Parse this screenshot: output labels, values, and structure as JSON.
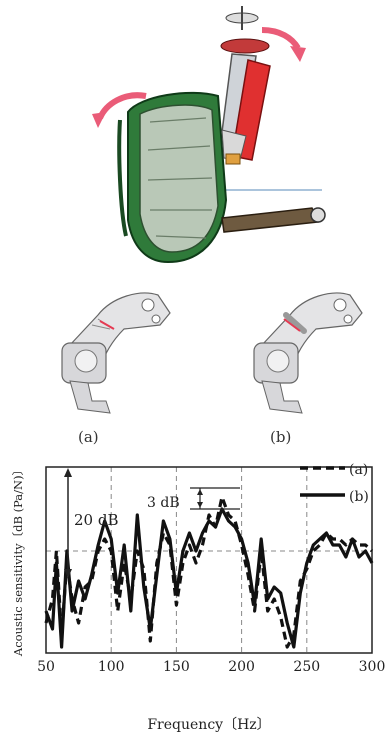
{
  "figure": {
    "panel_labels": {
      "a": "(a)",
      "b": "(b)"
    }
  },
  "chart_data": {
    "type": "line",
    "xlabel": "Frequency〔Hz〕",
    "ylabel": "Acoustic sensitivity〔dB (Pa/N)〕",
    "xlim": [
      50,
      300
    ],
    "x_ticks": [
      "50",
      "100",
      "150",
      "200",
      "250",
      "300"
    ],
    "grid": true,
    "legend_position": "top-right",
    "annotations": {
      "range_20db": "20 dB",
      "delta_3db": "3 dB"
    },
    "series": [
      {
        "name": "(a)",
        "style": "dashed",
        "x": [
          50,
          55,
          58,
          62,
          66,
          70,
          75,
          80,
          85,
          90,
          95,
          100,
          105,
          110,
          115,
          120,
          125,
          130,
          135,
          140,
          145,
          150,
          155,
          160,
          165,
          170,
          175,
          180,
          185,
          190,
          195,
          200,
          205,
          210,
          215,
          220,
          225,
          230,
          235,
          240,
          245,
          250,
          255,
          260,
          265,
          270,
          275,
          280,
          285,
          290,
          295,
          300
        ],
        "y": [
          -16,
          -12,
          -4,
          -18,
          -6,
          -12,
          -16,
          -10,
          -9,
          -4,
          -2,
          -4,
          -14,
          -6,
          -12,
          -4,
          -7,
          -19,
          -6,
          -1,
          -3,
          -13,
          -6,
          -3,
          -6,
          -3,
          2,
          0,
          5,
          2,
          1,
          -3,
          -8,
          -14,
          -4,
          -14,
          -12,
          -15,
          -20,
          -18,
          -9,
          -7,
          -4,
          -3,
          -1,
          -2,
          -2,
          -3,
          -2,
          -3,
          -3,
          -4
        ]
      },
      {
        "name": "(b)",
        "style": "solid",
        "x": [
          50,
          55,
          58,
          62,
          66,
          70,
          75,
          80,
          85,
          90,
          95,
          100,
          105,
          110,
          115,
          120,
          125,
          130,
          135,
          140,
          145,
          150,
          155,
          160,
          165,
          170,
          175,
          180,
          185,
          190,
          195,
          200,
          205,
          210,
          215,
          220,
          225,
          230,
          235,
          240,
          245,
          250,
          255,
          260,
          265,
          270,
          275,
          280,
          285,
          290,
          295,
          300
        ],
        "y": [
          -14,
          -17,
          -6,
          -20,
          -4,
          -14,
          -9,
          -12,
          -8,
          -3,
          1,
          -2,
          -11,
          -3,
          -14,
          2,
          -10,
          -17,
          -8,
          1,
          -2,
          -11,
          -4,
          -1,
          -4,
          -1,
          1,
          0,
          3,
          1,
          0,
          -2,
          -6,
          -13,
          -2,
          -12,
          -10,
          -11,
          -16,
          -20,
          -11,
          -6,
          -3,
          -2,
          -1,
          -3,
          -3,
          -5,
          -2,
          -5,
          -4,
          -6
        ]
      }
    ]
  }
}
